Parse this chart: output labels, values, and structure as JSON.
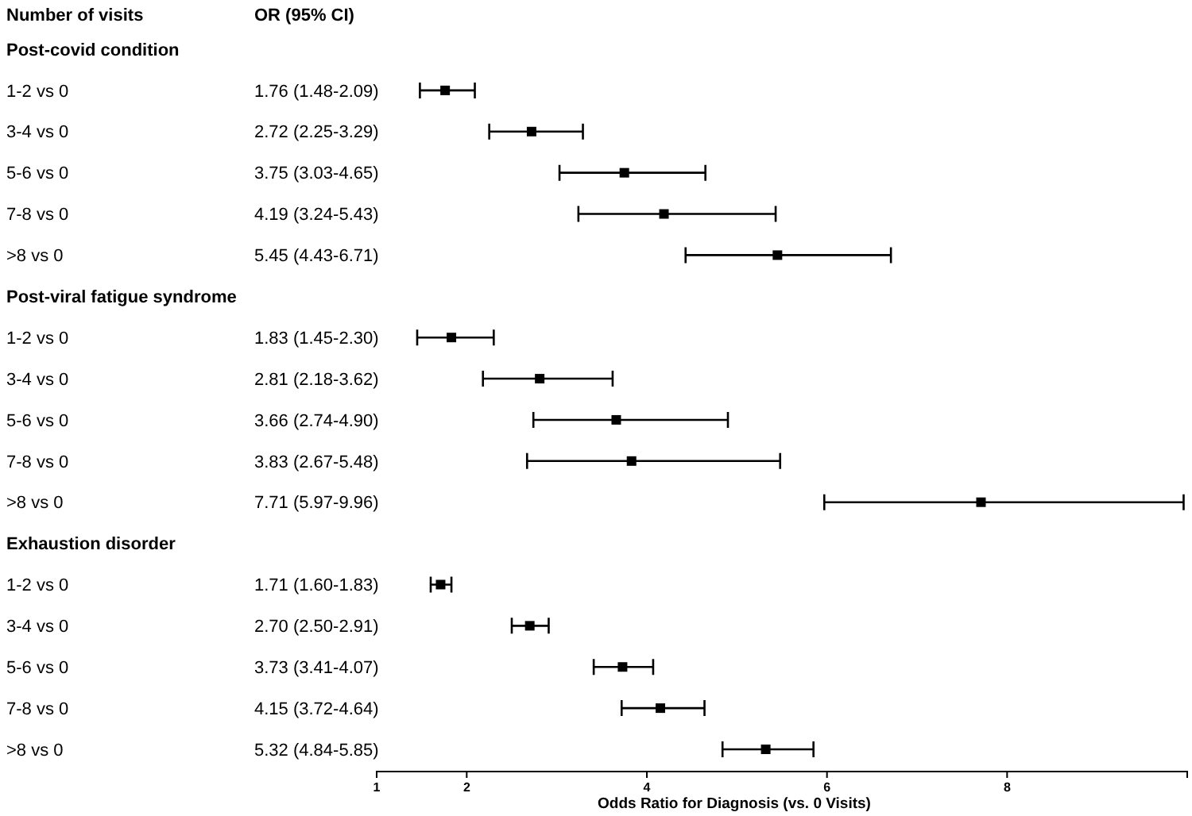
{
  "chart_data": {
    "type": "scatter",
    "orientation": "horizontal",
    "ylabel": "Number of visits",
    "xlabel": "Odds Ratio for Diagnosis (vs. 0 Visits)",
    "annotations": [
      "OR (95% CI)"
    ],
    "categories": [
      "Post-covid condition",
      "1-2 vs 0",
      "3-4 vs 0",
      "5-6 vs 0",
      "7-8 vs 0",
      ">8 vs 0",
      "Post-viral fatigue syndrome",
      "1-2 vs 0",
      "3-4 vs 0",
      "5-6 vs 0",
      "7-8 vs 0",
      ">8 vs 0",
      "Exhaustion disorder",
      "1-2 vs 0",
      "3-4 vs 0",
      "5-6 vs 0",
      "7-8 vs 0",
      ">8 vs 0"
    ],
    "values": [
      null,
      1.76,
      2.72,
      3.75,
      4.19,
      5.45,
      null,
      1.83,
      2.81,
      3.66,
      3.83,
      7.71,
      null,
      1.71,
      2.7,
      3.73,
      4.15,
      5.32
    ],
    "errors": [
      null,
      [
        1.48,
        2.09
      ],
      [
        2.25,
        3.29
      ],
      [
        3.03,
        4.65
      ],
      [
        3.24,
        5.43
      ],
      [
        4.43,
        6.71
      ],
      null,
      [
        1.45,
        2.3
      ],
      [
        2.18,
        3.62
      ],
      [
        2.74,
        4.9
      ],
      [
        2.67,
        5.48
      ],
      [
        5.97,
        9.96
      ],
      null,
      [
        1.6,
        1.83
      ],
      [
        2.5,
        2.91
      ],
      [
        3.41,
        4.07
      ],
      [
        3.72,
        4.64
      ],
      [
        4.84,
        5.85
      ]
    ],
    "value_labels": [
      null,
      "1.76 (1.48-2.09)",
      "2.72 (2.25-3.29)",
      "3.75 (3.03-4.65)",
      "4.19 (3.24-5.43)",
      "5.45 (4.43-6.71)",
      null,
      "1.83 (1.45-2.30)",
      "2.81 (2.18-3.62)",
      "3.66 (2.74-4.90)",
      "3.83 (2.67-5.48)",
      "7.71 (5.97-9.96)",
      null,
      "1.71 (1.60-1.83)",
      "2.70 (2.50-2.91)",
      "3.73 (3.41-4.07)",
      "4.15 (3.72-4.64)",
      "5.32 (4.84-5.85)"
    ],
    "color": "#000000",
    "marker": "square",
    "xlim": [
      1,
      10
    ],
    "xticks": [
      1,
      2,
      4,
      6,
      8
    ],
    "grid": false
  }
}
